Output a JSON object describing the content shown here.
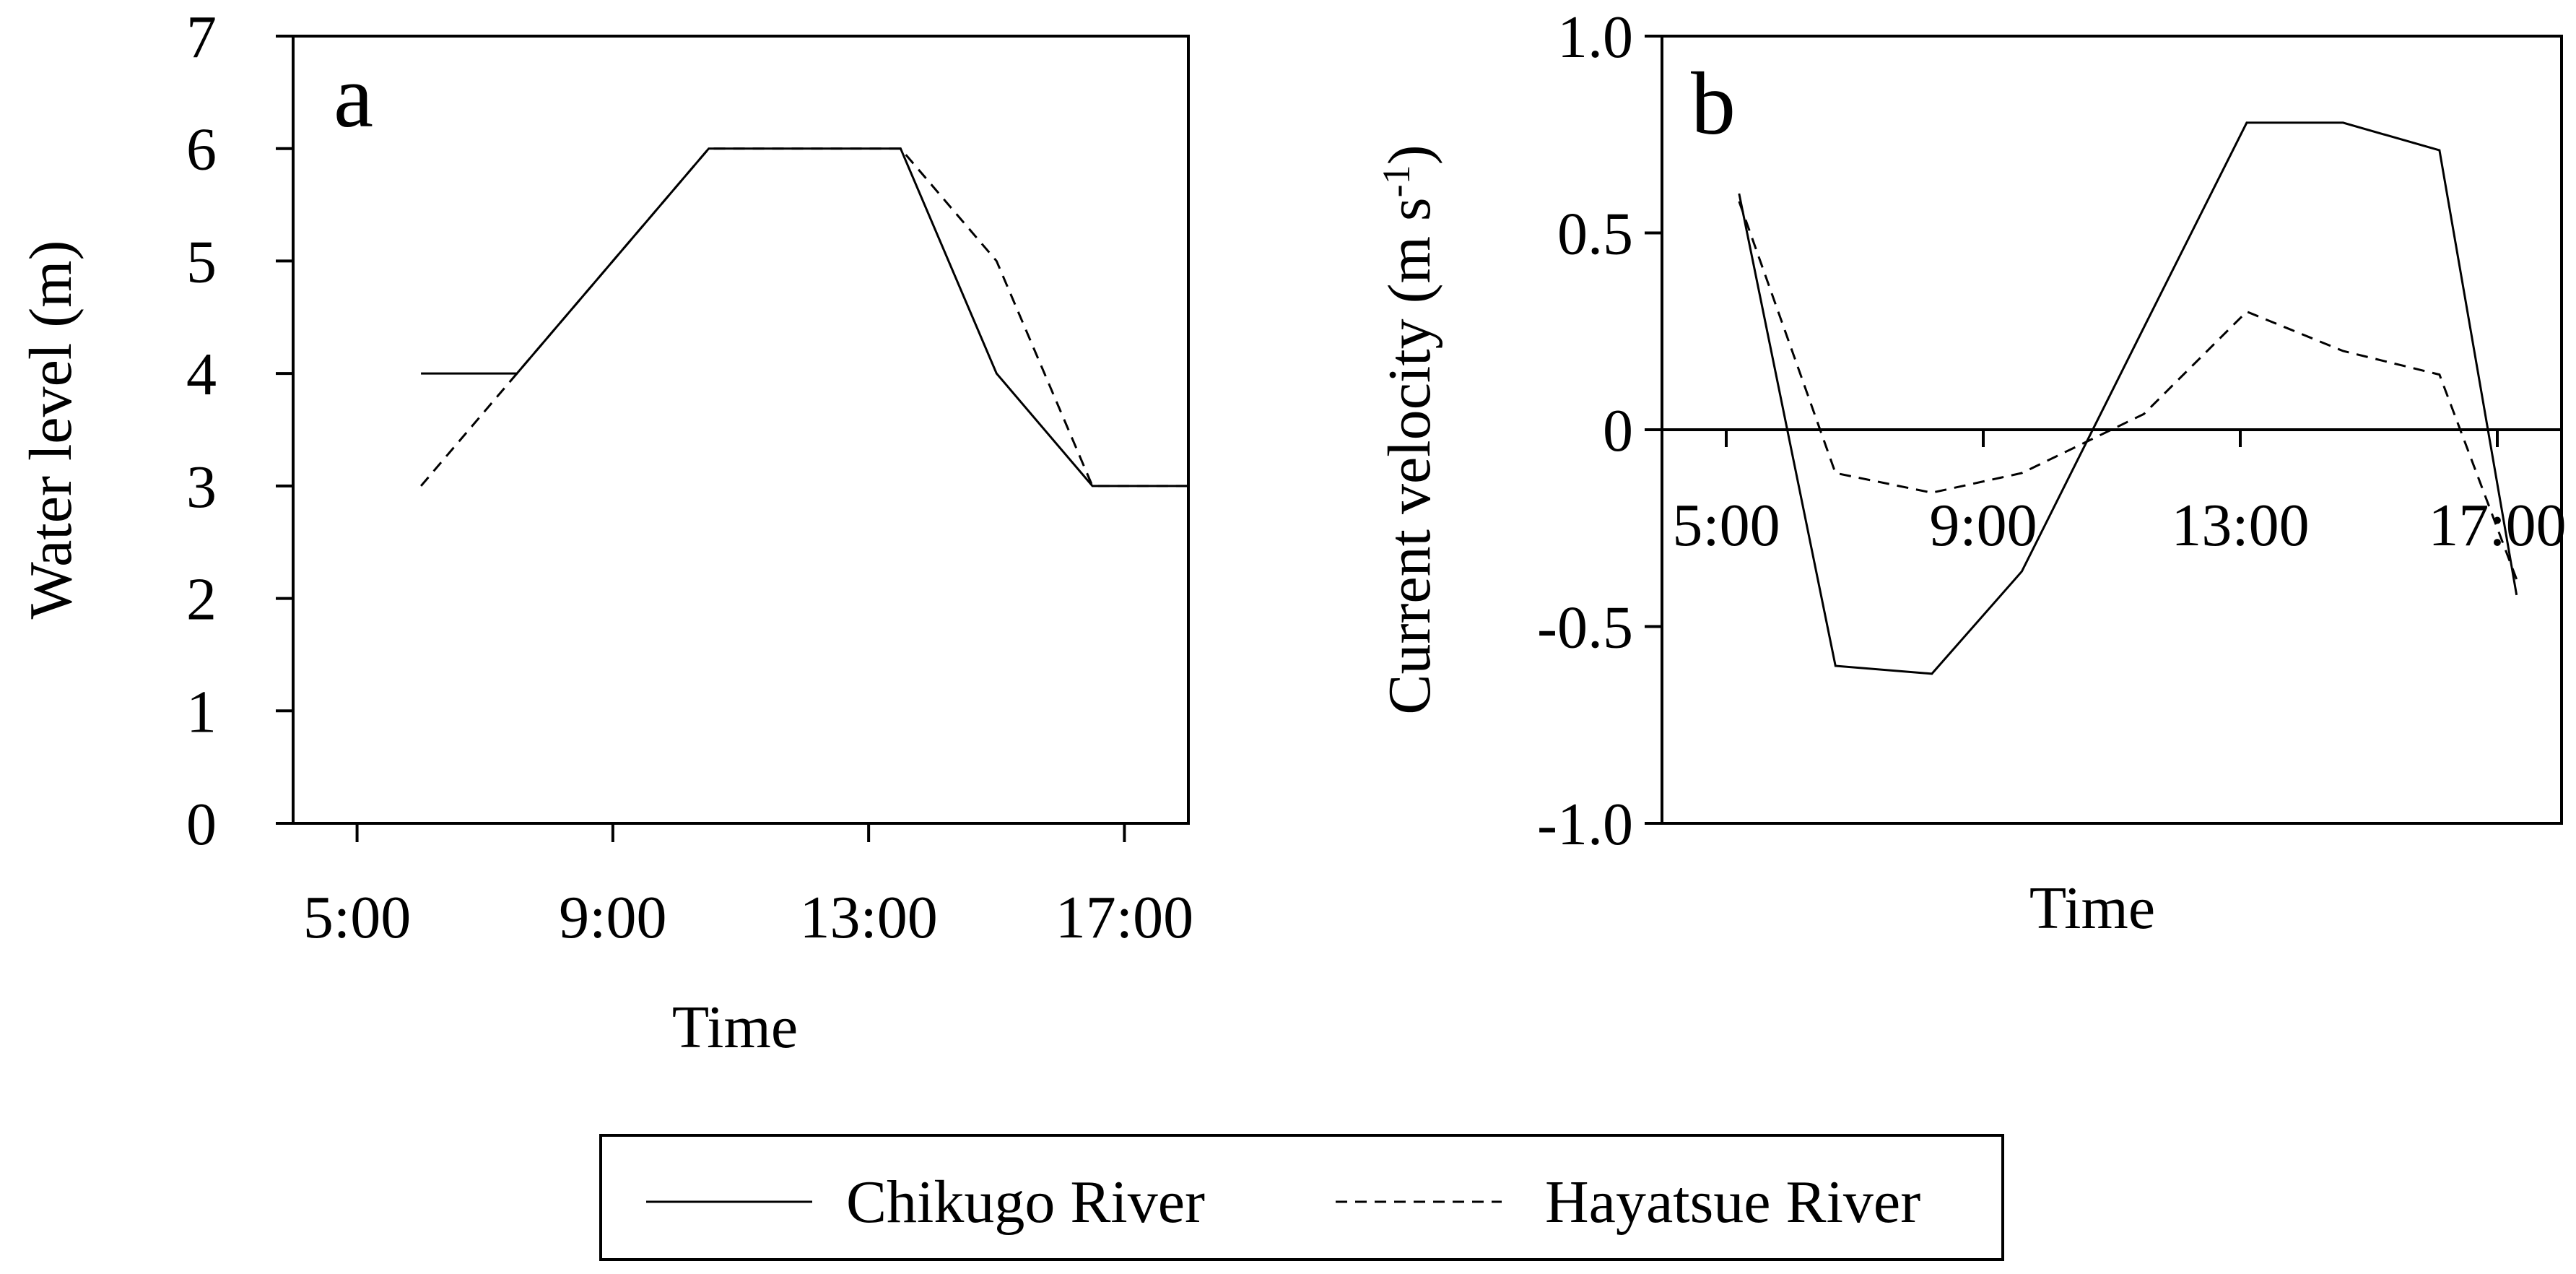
{
  "chart_data": [
    {
      "panel": "a",
      "type": "line",
      "xlabel": "Time",
      "ylabel": "Water level (m)",
      "xlim": [
        4,
        18
      ],
      "ylim": [
        0,
        7
      ],
      "xticks": [
        5,
        9,
        13,
        17
      ],
      "xtick_labels": [
        "5:00",
        "9:00",
        "13:00",
        "17:00"
      ],
      "yticks": [
        0,
        1,
        2,
        3,
        4,
        5,
        6,
        7
      ],
      "ytick_labels": [
        "0",
        "1",
        "2",
        "3",
        "4",
        "5",
        "6",
        "7"
      ],
      "grid": false,
      "series": [
        {
          "name": "Chikugo River",
          "style": "solid",
          "x": [
            6,
            7.5,
            9,
            10.5,
            12,
            13.5,
            15,
            16.5,
            18
          ],
          "values": [
            4,
            4,
            5,
            6,
            6,
            6,
            4,
            3,
            3
          ]
        },
        {
          "name": "Hayatsue River",
          "style": "dashed",
          "x": [
            6,
            7.5,
            9,
            10.5,
            12,
            13.5,
            15,
            16.5,
            18
          ],
          "values": [
            3,
            4,
            5,
            6,
            6,
            6,
            5,
            3,
            3
          ]
        }
      ]
    },
    {
      "panel": "b",
      "type": "line",
      "xlabel": "Time",
      "ylabel_main": "Current velocity (m s",
      "ylabel_sup": "-1",
      "ylabel_close": ")",
      "xlim": [
        4,
        18
      ],
      "ylim": [
        -1.0,
        1.0
      ],
      "xticks": [
        5,
        9,
        13,
        17
      ],
      "xtick_labels": [
        "5:00",
        "9:00",
        "13:00",
        "17:00"
      ],
      "yticks": [
        -1.0,
        -0.5,
        0,
        0.5,
        1.0
      ],
      "ytick_labels": [
        "-1.0",
        "-0.5",
        "0",
        "0.5",
        "1.0"
      ],
      "zero_line": true,
      "grid": false,
      "series": [
        {
          "name": "Chikugo River",
          "style": "solid",
          "x": [
            5.2,
            6.7,
            8.2,
            9.6,
            11.5,
            13.1,
            14.6,
            16.1,
            17.3
          ],
          "values": [
            0.6,
            -0.6,
            -0.62,
            -0.36,
            0.26,
            0.78,
            0.78,
            0.71,
            -0.42
          ]
        },
        {
          "name": "Hayatsue River",
          "style": "dashed",
          "x": [
            5.2,
            6.7,
            8.2,
            9.6,
            11.5,
            13.1,
            14.6,
            16.1,
            17.3
          ],
          "values": [
            0.58,
            -0.11,
            -0.16,
            -0.11,
            0.04,
            0.3,
            0.2,
            0.14,
            -0.38
          ]
        }
      ]
    }
  ],
  "legend": {
    "placement": "bottom-center",
    "entries": [
      "Chikugo River",
      "Hayatsue River"
    ]
  }
}
